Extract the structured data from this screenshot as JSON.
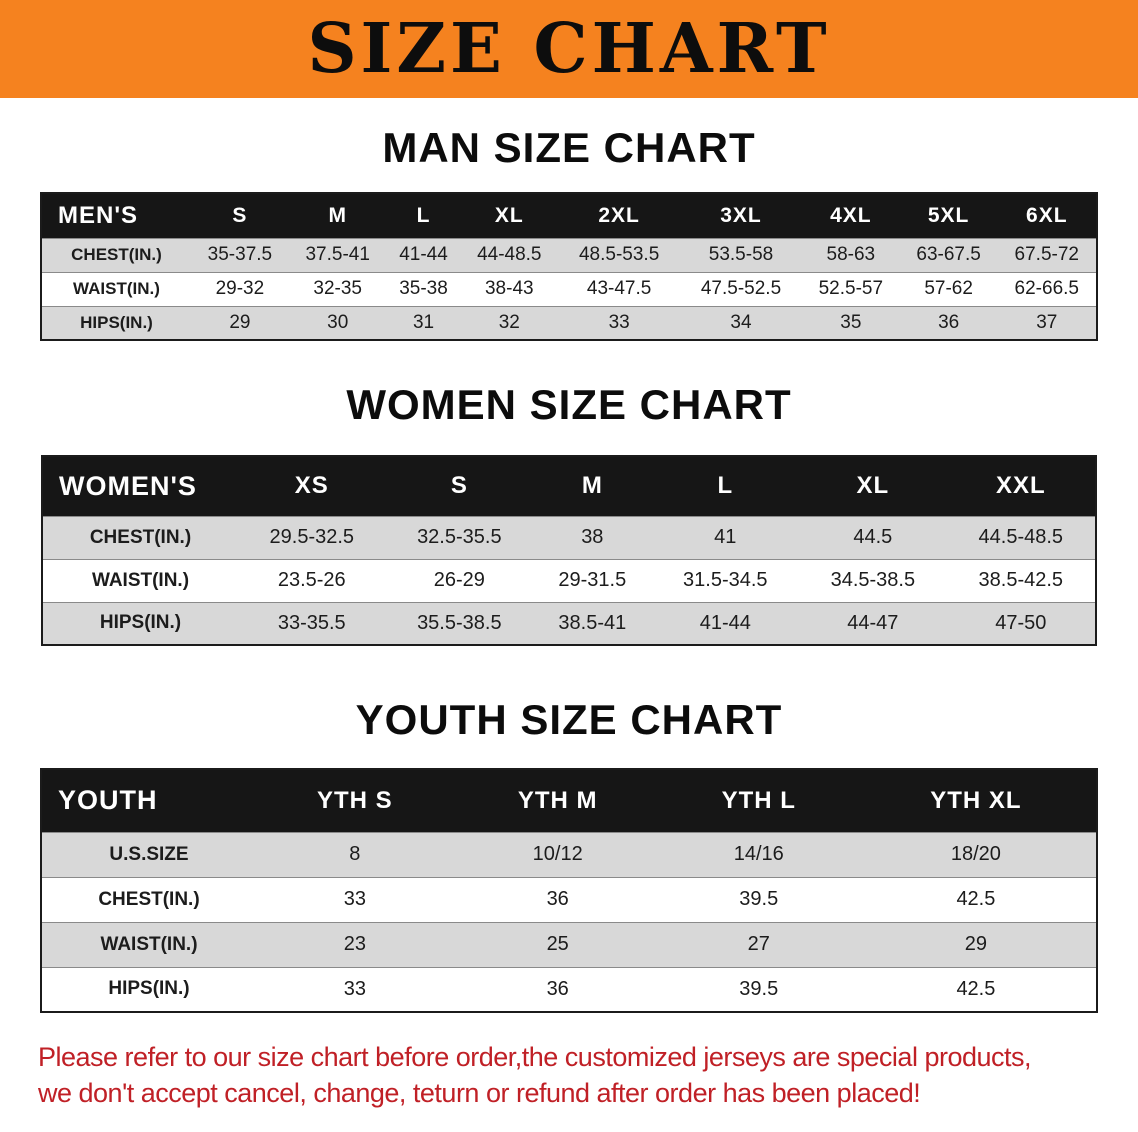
{
  "theme": {
    "banner-bg": "#f5821f",
    "header-bg": "#161616",
    "row-alt": "#d8d8d8",
    "note-color": "#c02026"
  },
  "banner": {
    "title": "SIZE CHART"
  },
  "sections": [
    {
      "heading": "MAN SIZE CHART",
      "table": {
        "header": [
          "MEN'S",
          "S",
          "M",
          "L",
          "XL",
          "2XL",
          "3XL",
          "4XL",
          "5XL",
          "6XL"
        ],
        "rows": [
          [
            "CHEST(IN.)",
            "35-37.5",
            "37.5-41",
            "41-44",
            "44-48.5",
            "48.5-53.5",
            "53.5-58",
            "58-63",
            "63-67.5",
            "67.5-72"
          ],
          [
            "WAIST(IN.)",
            "29-32",
            "32-35",
            "35-38",
            "38-43",
            "43-47.5",
            "47.5-52.5",
            "52.5-57",
            "57-62",
            "62-66.5"
          ],
          [
            "HIPS(IN.)",
            "29",
            "30",
            "31",
            "32",
            "33",
            "34",
            "35",
            "36",
            "37"
          ]
        ]
      }
    },
    {
      "heading": "WOMEN SIZE CHART",
      "table": {
        "header": [
          "WOMEN'S",
          "XS",
          "S",
          "M",
          "L",
          "XL",
          "XXL"
        ],
        "rows": [
          [
            "CHEST(IN.)",
            "29.5-32.5",
            "32.5-35.5",
            "38",
            "41",
            "44.5",
            "44.5-48.5"
          ],
          [
            "WAIST(IN.)",
            "23.5-26",
            "26-29",
            "29-31.5",
            "31.5-34.5",
            "34.5-38.5",
            "38.5-42.5"
          ],
          [
            "HIPS(IN.)",
            "33-35.5",
            "35.5-38.5",
            "38.5-41",
            "41-44",
            "44-47",
            "47-50"
          ]
        ]
      }
    },
    {
      "heading": "YOUTH SIZE CHART",
      "table": {
        "header": [
          "YOUTH",
          "YTH S",
          "YTH M",
          "YTH L",
          "YTH XL"
        ],
        "rows": [
          [
            "U.S.SIZE",
            "8",
            "10/12",
            "14/16",
            "18/20"
          ],
          [
            "CHEST(IN.)",
            "33",
            "36",
            "39.5",
            "42.5"
          ],
          [
            "WAIST(IN.)",
            "23",
            "25",
            "27",
            "29"
          ],
          [
            "HIPS(IN.)",
            "33",
            "36",
            "39.5",
            "42.5"
          ]
        ]
      }
    }
  ],
  "footer": {
    "line1": "Please refer to our size chart before order,the customized jerseys are special products,",
    "line2": "we don't accept cancel, change, teturn or refund after order has been placed!"
  }
}
